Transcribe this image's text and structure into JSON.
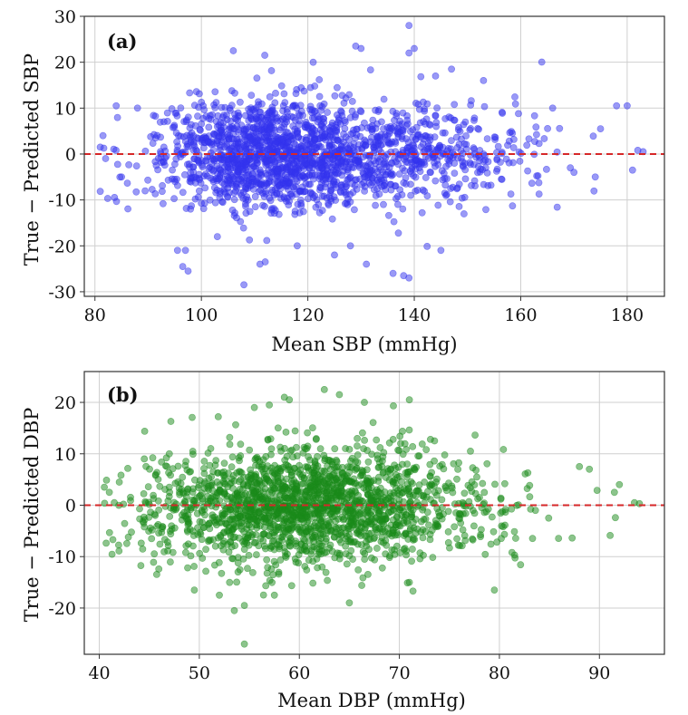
{
  "colors": {
    "sbp_points": "#3333ee",
    "dbp_points": "#1a8a1a",
    "zero_line": "#d62728",
    "grid": "#cfcfcf"
  },
  "chart_data": [
    {
      "type": "scatter",
      "panel_label": "(a)",
      "xlabel": "Mean SBP (mmHg)",
      "ylabel": "True − Predicted SBP",
      "xlim": [
        78,
        187
      ],
      "ylim": [
        -31,
        30
      ],
      "xticks": [
        80,
        100,
        120,
        140,
        160,
        180
      ],
      "yticks": [
        -30,
        -20,
        -10,
        0,
        10,
        20,
        30
      ],
      "grid": true,
      "reference_line_y": 0,
      "n_points": 1900,
      "seed": 11,
      "clusters": [
        {
          "weight": 0.66,
          "x_mean": 112,
          "x_sd": 10,
          "y_sd": 6.0
        },
        {
          "weight": 0.34,
          "x_mean": 137,
          "x_sd": 13,
          "y_sd": 5.8
        }
      ],
      "x_range": [
        81,
        183
      ],
      "y_range": [
        -28,
        28
      ],
      "outliers": [
        [
          95.5,
          -21
        ],
        [
          97,
          -21
        ],
        [
          96.5,
          -24.5
        ],
        [
          97.5,
          -25.5
        ],
        [
          108,
          -28.5
        ],
        [
          112,
          -23.5
        ],
        [
          111,
          -24
        ],
        [
          118,
          -20
        ],
        [
          125,
          -22
        ],
        [
          128,
          -20
        ],
        [
          131,
          -24
        ],
        [
          136,
          -26
        ],
        [
          138,
          -26.5
        ],
        [
          139,
          -27
        ],
        [
          145,
          -21
        ],
        [
          103,
          -18
        ],
        [
          106,
          22.5
        ],
        [
          139,
          28
        ],
        [
          139,
          22
        ],
        [
          140,
          23
        ],
        [
          130,
          23
        ],
        [
          129,
          23.5
        ],
        [
          121,
          20
        ],
        [
          147,
          18.5
        ],
        [
          144,
          17
        ],
        [
          153,
          16
        ],
        [
          166,
          10
        ],
        [
          175,
          5.5
        ],
        [
          178,
          10.5
        ],
        [
          180,
          10.5
        ],
        [
          183,
          0.5
        ],
        [
          182,
          0.8
        ],
        [
          181,
          -3.5
        ],
        [
          174,
          -5
        ],
        [
          170,
          -4
        ],
        [
          84,
          10.5
        ],
        [
          81.5,
          4
        ],
        [
          81,
          1.5
        ],
        [
          82,
          -1
        ],
        [
          88,
          10
        ],
        [
          85,
          -5
        ]
      ]
    },
    {
      "type": "scatter",
      "panel_label": "(b)",
      "xlabel": "Mean DBP (mmHg)",
      "ylabel": "True − Predicted DBP",
      "xlim": [
        38.5,
        96.5
      ],
      "ylim": [
        -29,
        26
      ],
      "xticks": [
        40,
        50,
        60,
        70,
        80,
        90
      ],
      "yticks": [
        -20,
        -10,
        0,
        10,
        20
      ],
      "grid": true,
      "reference_line_y": 0,
      "n_points": 1900,
      "seed": 29,
      "clusters": [
        {
          "weight": 1.0,
          "x_mean": 61,
          "x_sd": 8.5,
          "y_sd": 5.6
        }
      ],
      "x_range": [
        40.5,
        94.5
      ],
      "y_range": [
        -22,
        24
      ],
      "outliers": [
        [
          54.5,
          -27
        ],
        [
          53.5,
          -20.5
        ],
        [
          54.5,
          -19.5
        ],
        [
          52,
          -17.5
        ],
        [
          49.5,
          -16.5
        ],
        [
          57.5,
          -17.5
        ],
        [
          65,
          -19
        ],
        [
          71,
          -15
        ],
        [
          79.5,
          -16.5
        ],
        [
          57,
          19.5
        ],
        [
          58.5,
          21
        ],
        [
          59,
          20.5
        ],
        [
          62.5,
          22.5
        ],
        [
          64,
          21.5
        ],
        [
          66.5,
          20
        ],
        [
          71,
          20.5
        ],
        [
          55.5,
          19
        ],
        [
          93.5,
          0.5
        ],
        [
          94,
          0.3
        ],
        [
          92,
          4
        ],
        [
          91.5,
          2.5
        ],
        [
          89,
          7
        ],
        [
          88,
          7.5
        ],
        [
          40.5,
          3.5
        ],
        [
          41,
          2.5
        ],
        [
          41.5,
          0.5
        ],
        [
          42,
          4.5
        ],
        [
          44.5,
          9
        ],
        [
          47,
          10
        ]
      ]
    }
  ]
}
